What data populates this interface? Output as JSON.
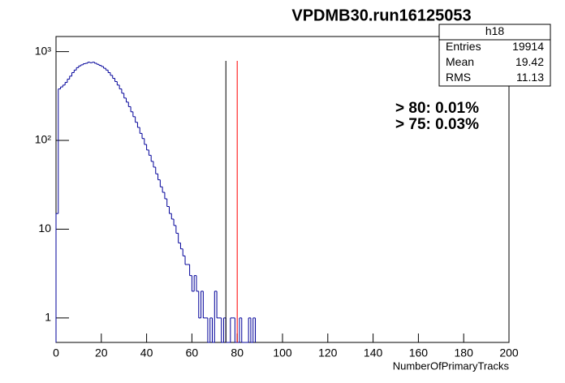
{
  "chart_data": {
    "type": "histogram",
    "title": "VPDMB30.run16125053",
    "x_label": "NumberOfPrimaryTracks",
    "bins": [
      0,
      1,
      2,
      3,
      4,
      5,
      6,
      7,
      8,
      9,
      10,
      11,
      12,
      13,
      14,
      15,
      16,
      17,
      18,
      19,
      20,
      21,
      22,
      23,
      24,
      25,
      26,
      27,
      28,
      29,
      30,
      31,
      32,
      33,
      34,
      35,
      36,
      37,
      38,
      39,
      40,
      41,
      42,
      43,
      44,
      45,
      46,
      47,
      48,
      49,
      50,
      51,
      52,
      53,
      54,
      55,
      56,
      57,
      58,
      59,
      60,
      61,
      62,
      63,
      64,
      65,
      66,
      67,
      68,
      69,
      70,
      71,
      72,
      73,
      74,
      75,
      76,
      77,
      78,
      79,
      80,
      81,
      82,
      83,
      84,
      85,
      86,
      87,
      88
    ],
    "values": [
      15,
      380,
      400,
      420,
      450,
      490,
      530,
      580,
      620,
      660,
      690,
      710,
      730,
      740,
      760,
      750,
      760,
      740,
      720,
      700,
      680,
      650,
      620,
      580,
      540,
      500,
      460,
      420,
      380,
      340,
      300,
      270,
      240,
      210,
      185,
      160,
      140,
      120,
      105,
      90,
      78,
      68,
      58,
      50,
      42,
      36,
      30,
      26,
      22,
      18,
      15,
      13,
      11,
      9,
      7,
      6,
      5,
      4,
      4,
      3,
      2,
      3,
      2,
      1,
      2,
      1,
      1,
      0,
      1,
      0,
      2,
      1,
      1,
      0,
      1,
      0,
      0,
      1,
      1,
      0,
      0,
      1,
      0,
      0,
      0,
      1,
      0,
      1
    ],
    "color": "#000099",
    "xlim": [
      0,
      200
    ],
    "xticks": [
      0,
      20,
      40,
      60,
      80,
      100,
      120,
      140,
      160,
      180,
      200
    ],
    "ylim": [
      0.53,
      1480
    ],
    "log_y": true,
    "yticks": [
      1,
      10,
      {
        "value": 100,
        "label": "10²"
      },
      {
        "value": 1000,
        "label": "10³"
      }
    ],
    "cut_lines": [
      {
        "x": 75,
        "color": "#000000"
      },
      {
        "x": 80,
        "color": "#ff0000"
      }
    ],
    "annotations": [
      {
        "text": "> 80: 0.01%",
        "color": "#ff0000"
      },
      {
        "text": "> 75: 0.03%",
        "color": "#000000"
      }
    ],
    "stats": {
      "name": "h18",
      "rows": [
        [
          "Entries",
          "19914"
        ],
        [
          "Mean",
          "19.42"
        ],
        [
          "RMS",
          "11.13"
        ]
      ]
    }
  }
}
